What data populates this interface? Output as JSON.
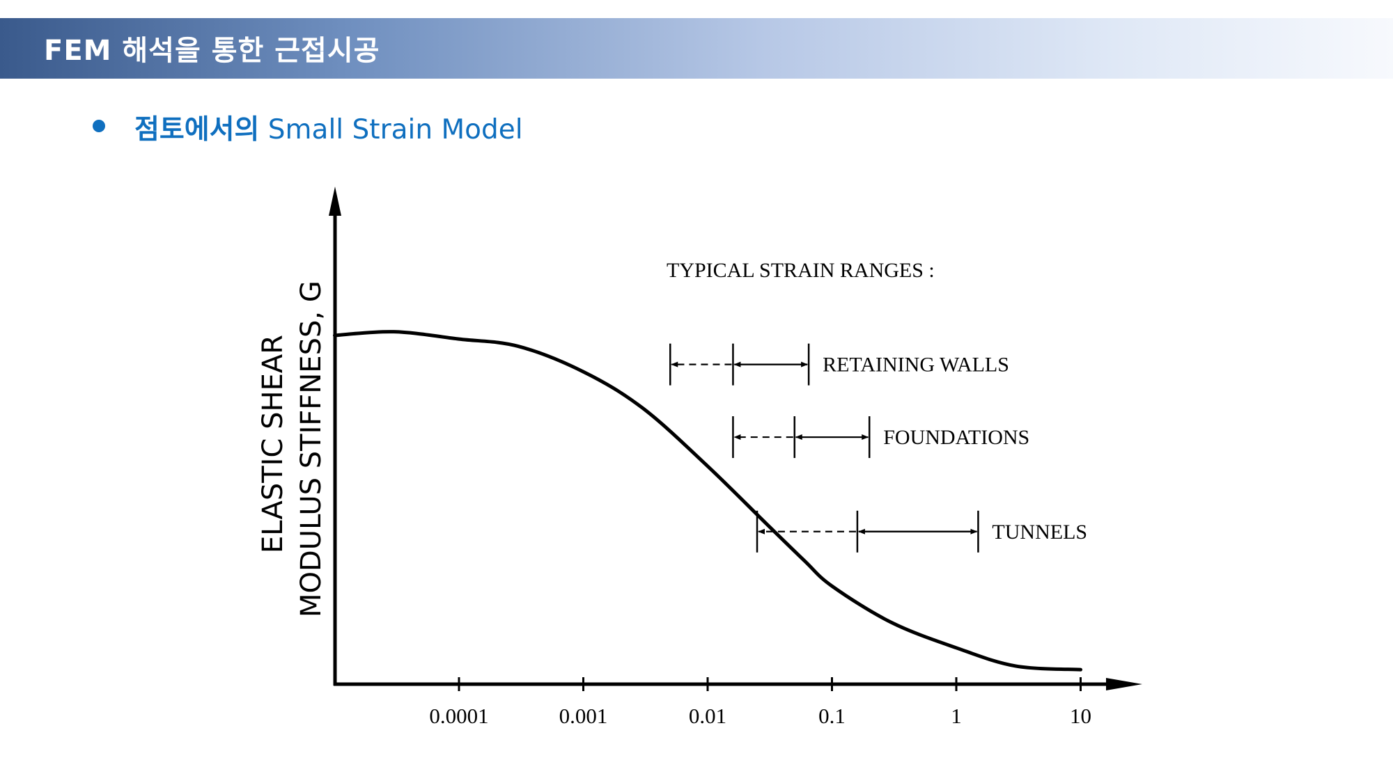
{
  "header": {
    "title": "FEM 해석을 통한 근접시공"
  },
  "section": {
    "bullet_title_ko": "점토에서의",
    "bullet_title_en": " Small Strain Model"
  },
  "chart_data": {
    "type": "line",
    "ylabel_lines": [
      "ELASTIC SHEAR",
      "MODULUS STIFFNESS,  G"
    ],
    "xlabel": "",
    "x_scale": "log",
    "xlim": [
      1e-05,
      10
    ],
    "ylim": [
      0,
      1.15
    ],
    "x_ticks": [
      {
        "value": 0.0001,
        "label": "0.0001"
      },
      {
        "value": 0.001,
        "label": "0.001"
      },
      {
        "value": 0.01,
        "label": "0.01"
      },
      {
        "value": 0.1,
        "label": "0.1"
      },
      {
        "value": 1,
        "label": "1"
      },
      {
        "value": 10,
        "label": "10"
      }
    ],
    "series": [
      {
        "points": [
          [
            1e-05,
            0.96
          ],
          [
            3e-05,
            0.97
          ],
          [
            0.0001,
            0.95
          ],
          [
            0.0003,
            0.93
          ],
          [
            0.001,
            0.86
          ],
          [
            0.003,
            0.76
          ],
          [
            0.01,
            0.6
          ],
          [
            0.03,
            0.44
          ],
          [
            0.06,
            0.34
          ],
          [
            0.1,
            0.27
          ],
          [
            0.3,
            0.17
          ],
          [
            1,
            0.1
          ],
          [
            3,
            0.05
          ],
          [
            10,
            0.04
          ]
        ]
      }
    ],
    "annotation_title": "TYPICAL STRAIN RANGES :",
    "ranges": [
      {
        "label": "RETAINING WALLS",
        "dashed": [
          0.005,
          0.016
        ],
        "solid": [
          0.016,
          0.065
        ],
        "level": 0.88
      },
      {
        "label": "FOUNDATIONS",
        "dashed": [
          0.016,
          0.05
        ],
        "solid": [
          0.05,
          0.2
        ],
        "level": 0.68
      },
      {
        "label": "TUNNELS",
        "dashed": [
          0.025,
          0.16
        ],
        "solid": [
          0.16,
          1.5
        ],
        "level": 0.42
      }
    ]
  }
}
